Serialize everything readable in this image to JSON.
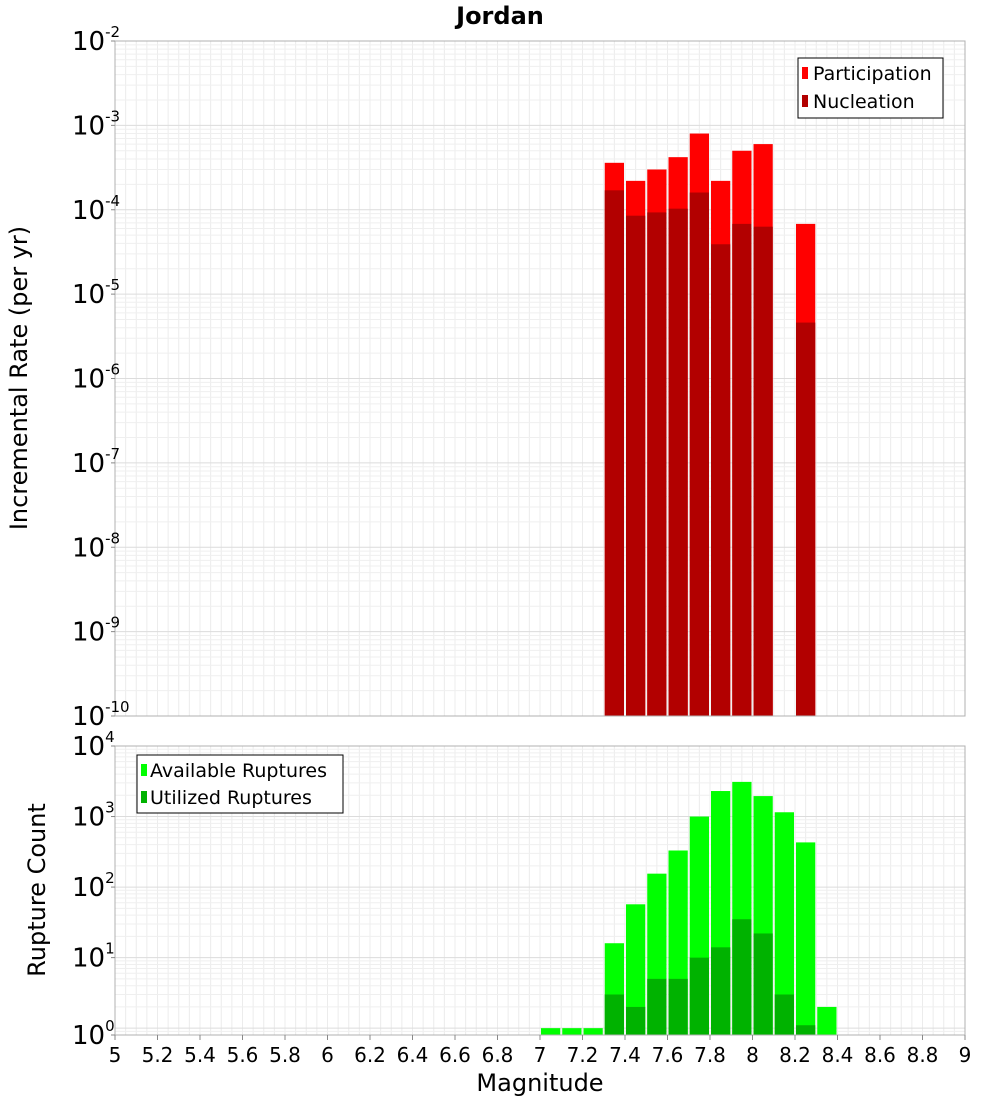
{
  "title": "Jordan",
  "chart_data": [
    {
      "type": "bar",
      "name": "incremental-rate",
      "scale": "log",
      "ylabel": "Incremental Rate (per yr)",
      "xlim": [
        5,
        9
      ],
      "ylim": [
        1e-10,
        0.01
      ],
      "y_exponents": [
        "-10",
        "-9",
        "-8",
        "-7",
        "-6",
        "-5",
        "-4",
        "-3",
        "-2"
      ],
      "bin_width": 0.1,
      "series": [
        {
          "name": "Participation",
          "color": "#ff0000",
          "x": [
            7.35,
            7.45,
            7.55,
            7.65,
            7.75,
            7.85,
            7.95,
            8.05,
            8.25
          ],
          "values": [
            0.00036,
            0.00022,
            0.0003,
            0.00042,
            0.0008,
            0.00022,
            0.0005,
            0.0006,
            6.8e-05
          ]
        },
        {
          "name": "Nucleation",
          "color": "#b20000",
          "x": [
            7.35,
            7.45,
            7.55,
            7.65,
            7.75,
            7.85,
            7.95,
            8.05,
            8.25
          ],
          "values": [
            0.00017,
            8.5e-05,
            9.3e-05,
            0.000103,
            0.00016,
            3.9e-05,
            6.8e-05,
            6.3e-05,
            4.6e-06
          ]
        }
      ],
      "legend": [
        "Participation",
        "Nucleation"
      ],
      "legend_position": "top-right"
    },
    {
      "type": "bar",
      "name": "rupture-count",
      "scale": "log",
      "ylabel": "Rupture Count",
      "xlabel": "Magnitude",
      "xlim": [
        5,
        9
      ],
      "ylim": [
        0.8,
        10000
      ],
      "y_exponents": [
        "0",
        "1",
        "2",
        "3",
        "4"
      ],
      "x_ticks": [
        "5",
        "5.2",
        "5.4",
        "5.6",
        "5.8",
        "6",
        "6.2",
        "6.4",
        "6.6",
        "6.8",
        "7",
        "7.2",
        "7.4",
        "7.6",
        "7.8",
        "8",
        "8.2",
        "8.4",
        "8.6",
        "8.8",
        "9"
      ],
      "bin_width": 0.1,
      "series": [
        {
          "name": "Available Ruptures",
          "color": "#00ff00",
          "x": [
            7.05,
            7.15,
            7.25,
            7.35,
            7.45,
            7.55,
            7.65,
            7.75,
            7.85,
            7.95,
            8.05,
            8.15,
            8.25,
            8.35
          ],
          "values": [
            1,
            1,
            1,
            16,
            57,
            155,
            330,
            1000,
            2300,
            3100,
            1950,
            1150,
            430,
            2
          ]
        },
        {
          "name": "Utilized Ruptures",
          "color": "#00b200",
          "x": [
            7.35,
            7.45,
            7.55,
            7.65,
            7.75,
            7.85,
            7.95,
            8.05,
            8.15,
            8.25
          ],
          "values": [
            3,
            2,
            5,
            5,
            10,
            14,
            35,
            22,
            3,
            1.1
          ]
        }
      ],
      "legend": [
        "Available Ruptures",
        "Utilized Ruptures"
      ],
      "legend_position": "top-left"
    }
  ]
}
